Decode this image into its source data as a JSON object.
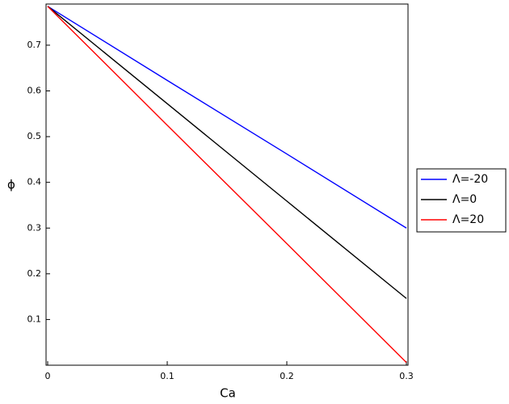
{
  "chart_data": {
    "type": "line",
    "x_label": "Ca",
    "y_label": "ϕ",
    "x": [
      0,
      0.1,
      0.2,
      0.3
    ],
    "series": [
      {
        "name": "Λ=-20",
        "color": "#0000ff",
        "values": [
          0.785,
          0.623,
          0.462,
          0.3
        ]
      },
      {
        "name": "Λ=0",
        "color": "#000000",
        "values": [
          0.785,
          0.572,
          0.359,
          0.146
        ]
      },
      {
        "name": "Λ=20",
        "color": "#ff0000",
        "values": [
          0.785,
          0.525,
          0.266,
          0.006
        ]
      }
    ],
    "xlim": [
      0,
      0.3
    ],
    "xticks": [
      0,
      0.1,
      0.2,
      0.3
    ],
    "ylim": [
      0,
      0.79
    ],
    "yticks": [
      0.1,
      0.2,
      0.3,
      0.4,
      0.5,
      0.6,
      0.7
    ],
    "legend": "right"
  }
}
